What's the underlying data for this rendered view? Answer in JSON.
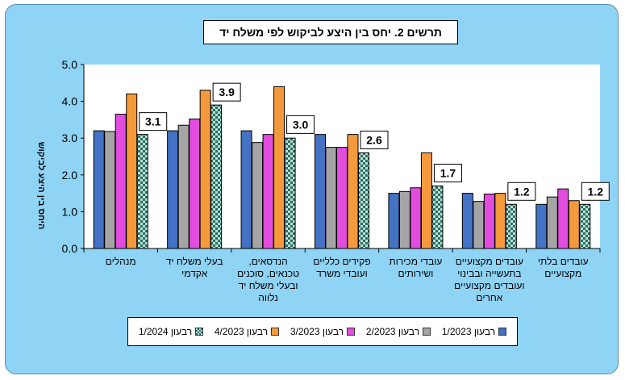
{
  "chart_data": {
    "type": "bar",
    "title": "תרשים 2. יחס בין היצע לביקוש לפי משלח יד",
    "ylabel": "היחס בין היצע לביקוש",
    "ylim": [
      0,
      5
    ],
    "yticks": [
      "0.0",
      "1.0",
      "2.0",
      "3.0",
      "4.0",
      "5.0"
    ],
    "categories": [
      [
        "מנהלים"
      ],
      [
        "בעלי משלח יד",
        "אקדמי"
      ],
      [
        "הנדסאים,",
        "טכנאים, סוכנים",
        "ובעלי משלח יד",
        "נלווה"
      ],
      [
        "פקידים כלליים",
        "ועובדי משרד"
      ],
      [
        "עובדי מכירות",
        "ושירותים"
      ],
      [
        "עובדים מקצועיים",
        "בתעשייה ובבינוי",
        "ועובדים מקצועיים",
        "אחרים"
      ],
      [
        "עובדים בלתי",
        "מקצועיים"
      ]
    ],
    "series": [
      {
        "name": "רבעון 1/2023",
        "color": "#4472c4",
        "values": [
          3.2,
          3.2,
          3.2,
          3.1,
          1.5,
          1.5,
          1.2
        ]
      },
      {
        "name": "רבעון 2/2023",
        "color": "#a5a5a5",
        "values": [
          3.18,
          3.35,
          2.88,
          2.75,
          1.55,
          1.28,
          1.4
        ]
      },
      {
        "name": "רבעון 3/2023",
        "color": "#e24de0",
        "values": [
          3.65,
          3.52,
          3.1,
          2.75,
          1.65,
          1.48,
          1.62
        ]
      },
      {
        "name": "רבעון 4/2023",
        "color": "#f59a3c",
        "values": [
          4.2,
          4.3,
          4.4,
          3.1,
          2.6,
          1.5,
          1.3
        ]
      },
      {
        "name": "רבעון 1/2024",
        "color": "#2e7d6e",
        "pattern": "checker",
        "values": [
          3.1,
          3.9,
          3.0,
          2.6,
          1.7,
          1.2,
          1.2
        ]
      }
    ],
    "data_labels": [
      "3.1",
      "3.9",
      "3.0",
      "2.6",
      "1.7",
      "1.2",
      "1.2"
    ],
    "grid": false,
    "legend_position": "bottom"
  }
}
